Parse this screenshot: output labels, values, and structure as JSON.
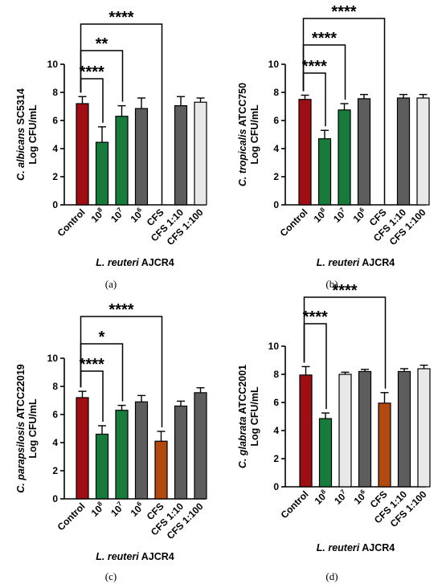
{
  "colors": {
    "control": "#9e0e12",
    "live": "#177b3b",
    "dark_gray": "#5d5d5d",
    "light_gray": "#e8e8e8",
    "cfs_orange": "#b2490f"
  },
  "chart_data": [
    {
      "type": "bar",
      "caption": "(a)",
      "ylabel_italic": "C. albicans",
      "ylabel_rest": " SC5314",
      "ylabel_line2": "Log CFU/mL",
      "xlabel_italic": "L. reuteri",
      "xlabel_rest": " AJCR4",
      "ylim": [
        0,
        10
      ],
      "yticks": [
        "0",
        "2",
        "4",
        "6",
        "8",
        "10"
      ],
      "categories": [
        {
          "label": "Control",
          "sup": ""
        },
        {
          "label": "10",
          "sup": "8"
        },
        {
          "label": "10",
          "sup": "7"
        },
        {
          "label": "10",
          "sup": "6"
        },
        {
          "label": "CFS",
          "sup": ""
        },
        {
          "label": "CFS 1:10",
          "sup": ""
        },
        {
          "label": "CFS 1:100",
          "sup": ""
        }
      ],
      "values": [
        7.2,
        4.45,
        6.3,
        6.85,
        0,
        7.05,
        7.3
      ],
      "errors": [
        0.5,
        1.1,
        0.75,
        0.75,
        0,
        0.65,
        0.3
      ],
      "bar_colors": [
        "control",
        "live",
        "live",
        "dark_gray",
        "dark_gray",
        "dark_gray",
        "light_gray"
      ],
      "comparisons": [
        {
          "from": 0,
          "to": 1,
          "label": "****"
        },
        {
          "from": 0,
          "to": 2,
          "label": "**"
        },
        {
          "from": 0,
          "to": 4,
          "label": "****"
        }
      ]
    },
    {
      "type": "bar",
      "caption": "(b)",
      "ylabel_italic": "C. tropicalis",
      "ylabel_rest": " ATCC750",
      "ylabel_line2": "Log CFU/mL",
      "xlabel_italic": "L. reuteri",
      "xlabel_rest": " AJCR4",
      "ylim": [
        0,
        10
      ],
      "yticks": [
        "0",
        "2",
        "4",
        "6",
        "8",
        "10"
      ],
      "categories": [
        {
          "label": "Control",
          "sup": ""
        },
        {
          "label": "10",
          "sup": "8"
        },
        {
          "label": "10",
          "sup": "7"
        },
        {
          "label": "10",
          "sup": "6"
        },
        {
          "label": "CFS",
          "sup": ""
        },
        {
          "label": "CFS 1:10",
          "sup": ""
        },
        {
          "label": "CFS 1:100",
          "sup": ""
        }
      ],
      "values": [
        7.5,
        4.7,
        6.75,
        7.55,
        0,
        7.6,
        7.6
      ],
      "errors": [
        0.3,
        0.6,
        0.45,
        0.3,
        0,
        0.25,
        0.25
      ],
      "bar_colors": [
        "control",
        "live",
        "live",
        "dark_gray",
        "dark_gray",
        "dark_gray",
        "light_gray"
      ],
      "comparisons": [
        {
          "from": 0,
          "to": 1,
          "label": "****"
        },
        {
          "from": 0,
          "to": 2,
          "label": "****"
        },
        {
          "from": 0,
          "to": 4,
          "label": "****"
        }
      ]
    },
    {
      "type": "bar",
      "caption": "(c)",
      "ylabel_italic": "C. parapsilosis",
      "ylabel_rest": " ATCC22019",
      "ylabel_line2": "Log CFU/mL",
      "xlabel_italic": "L. reuteri",
      "xlabel_rest": " AJCR4",
      "ylim": [
        0,
        10
      ],
      "yticks": [
        "0",
        "2",
        "4",
        "6",
        "8",
        "10"
      ],
      "categories": [
        {
          "label": "Control",
          "sup": ""
        },
        {
          "label": "10",
          "sup": "8"
        },
        {
          "label": "10",
          "sup": "7"
        },
        {
          "label": "10",
          "sup": "6"
        },
        {
          "label": "CFS",
          "sup": ""
        },
        {
          "label": "CFS 1:10",
          "sup": ""
        },
        {
          "label": "CFS 1:100",
          "sup": ""
        }
      ],
      "values": [
        7.2,
        4.6,
        6.3,
        6.9,
        4.1,
        6.6,
        7.55
      ],
      "errors": [
        0.45,
        0.6,
        0.35,
        0.45,
        0.7,
        0.35,
        0.35
      ],
      "bar_colors": [
        "control",
        "live",
        "live",
        "dark_gray",
        "cfs_orange",
        "dark_gray",
        "dark_gray"
      ],
      "comparisons": [
        {
          "from": 0,
          "to": 1,
          "label": "****"
        },
        {
          "from": 0,
          "to": 2,
          "label": "*"
        },
        {
          "from": 0,
          "to": 4,
          "label": "****"
        }
      ]
    },
    {
      "type": "bar",
      "caption": "(d)",
      "ylabel_italic": "C. glabrata",
      "ylabel_rest": " ATCC2001",
      "ylabel_line2": "Log CFU/mL",
      "xlabel_italic": "L. reuteri",
      "xlabel_rest": " AJCR4",
      "ylim": [
        0,
        10
      ],
      "yticks": [
        "0",
        "2",
        "4",
        "6",
        "8",
        "10"
      ],
      "categories": [
        {
          "label": "Control",
          "sup": ""
        },
        {
          "label": "10",
          "sup": "8"
        },
        {
          "label": "10",
          "sup": "7"
        },
        {
          "label": "10",
          "sup": "6"
        },
        {
          "label": "CFS",
          "sup": ""
        },
        {
          "label": "CFS 1:10",
          "sup": ""
        },
        {
          "label": "CFS 1:100",
          "sup": ""
        }
      ],
      "values": [
        7.95,
        4.85,
        8.0,
        8.2,
        5.95,
        8.2,
        8.4
      ],
      "errors": [
        0.6,
        0.4,
        0.15,
        0.15,
        0.75,
        0.2,
        0.25
      ],
      "bar_colors": [
        "control",
        "live",
        "light_gray",
        "dark_gray",
        "cfs_orange",
        "dark_gray",
        "light_gray"
      ],
      "comparisons": [
        {
          "from": 0,
          "to": 1,
          "label": "****"
        },
        {
          "from": 0,
          "to": 4,
          "label": "****"
        }
      ]
    }
  ]
}
